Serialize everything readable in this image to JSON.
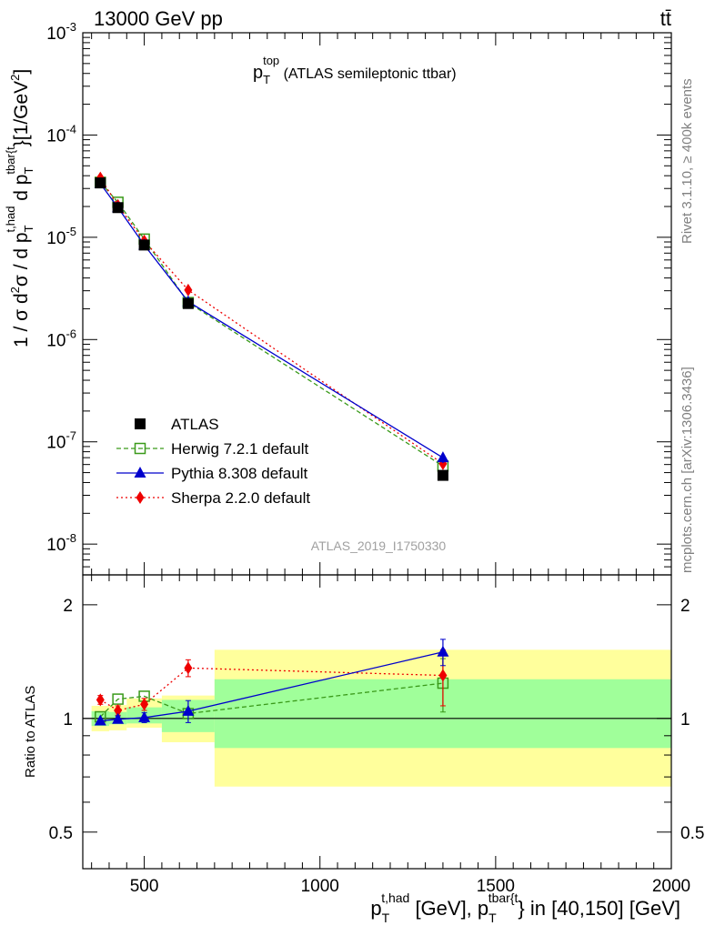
{
  "header": {
    "energy_label": "13000 GeV pp",
    "process_label": "tt̄"
  },
  "side_labels": {
    "rivet": "Rivet 3.1.10, ≥ 400k events",
    "mcplots": "mcplots.cern.ch [arXiv:1306.3436]"
  },
  "plot": {
    "title_main": "p",
    "title_sub": "T",
    "title_sup": "top",
    "title_rest": " (ATLAS semileptonic ttbar)",
    "watermark": "ATLAS_2019_I1750330",
    "ylabel_upper": "1 / σ d²σ / d p_T^{t,had} d p_T^{tbar{t}} [1/GeV²]",
    "ylabel_ratio": "Ratio to ATLAS",
    "xlabel": "p_T^{t,had} [GeV], p_T^{tbar{t}} in [40,150] [GeV]"
  },
  "colors": {
    "data": "#000000",
    "herwig": "#3a9a1a",
    "pythia": "#0000cc",
    "sherpa": "#ee0000",
    "band_inner": "#a0ff9a",
    "band_outer": "#ffff9c"
  },
  "chart_data": [
    {
      "type": "line",
      "scale": "log-y",
      "xlim": [
        325,
        2000
      ],
      "ylim": [
        5e-09,
        0.001
      ],
      "x_ticks": [
        500,
        1000,
        1500,
        2000
      ],
      "y_ticks": [
        {
          "value": 1e-08,
          "label": "10^-8"
        },
        {
          "value": 1e-07,
          "label": "10^-7"
        },
        {
          "value": 1e-06,
          "label": "10^-6"
        },
        {
          "value": 1e-05,
          "label": "10^-5"
        },
        {
          "value": 0.0001,
          "label": "10^-4"
        },
        {
          "value": 0.001,
          "label": "10^-3"
        }
      ],
      "legend_position": "bottom-left",
      "series": [
        {
          "key": "atlas",
          "name": "ATLAS",
          "marker": "square",
          "x": [
            375,
            425,
            500,
            625,
            1350
          ],
          "y": [
            3.4e-05,
            1.95e-05,
            8.4e-06,
            2.25e-06,
            4.7e-08
          ]
        },
        {
          "key": "herwig",
          "name": "Herwig 7.2.1 default",
          "marker": "open-square",
          "line": "dashed",
          "x": [
            375,
            425,
            500,
            625,
            1350
          ],
          "y": [
            3.45e-05,
            2.2e-05,
            9.6e-06,
            2.3e-06,
            5.8e-08
          ]
        },
        {
          "key": "pythia",
          "name": "Pythia 8.308 default",
          "marker": "triangle",
          "line": "solid",
          "x": [
            375,
            425,
            500,
            625,
            1350
          ],
          "y": [
            3.35e-05,
            1.95e-05,
            8.4e-06,
            2.35e-06,
            7e-08
          ],
          "yerr": [
            0,
            0,
            0,
            0,
            8e-09
          ]
        },
        {
          "key": "sherpa",
          "name": "Sherpa 2.2.0 default",
          "marker": "diamond",
          "line": "dotted",
          "x": [
            375,
            425,
            500,
            625,
            1350
          ],
          "y": [
            3.8e-05,
            2.05e-05,
            9.2e-06,
            3.05e-06,
            6.1e-08
          ]
        }
      ]
    },
    {
      "type": "line",
      "scale": "log-y",
      "xlim": [
        325,
        2000
      ],
      "ylim": [
        0.4,
        2.4
      ],
      "x_ticks": [
        500,
        1000,
        1500,
        2000
      ],
      "y_ticks": [
        {
          "value": 0.5,
          "label": "0.5"
        },
        {
          "value": 1,
          "label": "1"
        },
        {
          "value": 2,
          "label": "2"
        }
      ],
      "reference_line": 1,
      "bands": [
        {
          "x0": 350,
          "x1": 400,
          "inner": [
            0.955,
            1.045
          ],
          "outer": [
            0.925,
            1.08
          ]
        },
        {
          "x0": 400,
          "x1": 450,
          "inner": [
            0.965,
            1.04
          ],
          "outer": [
            0.93,
            1.085
          ]
        },
        {
          "x0": 450,
          "x1": 550,
          "inner": [
            0.97,
            1.07
          ],
          "outer": [
            0.945,
            1.13
          ]
        },
        {
          "x0": 550,
          "x1": 700,
          "inner": [
            0.92,
            1.12
          ],
          "outer": [
            0.865,
            1.15
          ]
        },
        {
          "x0": 700,
          "x1": 2000,
          "inner": [
            0.835,
            1.27
          ],
          "outer": [
            0.66,
            1.52
          ]
        }
      ],
      "series": [
        {
          "key": "herwig",
          "x": [
            375,
            425,
            500,
            625,
            1350
          ],
          "y": [
            1.01,
            1.125,
            1.145,
            1.03,
            1.24
          ],
          "yerr": [
            0,
            0,
            0,
            0,
            0.2
          ]
        },
        {
          "key": "pythia",
          "x": [
            375,
            425,
            500,
            625,
            1350
          ],
          "y": [
            0.985,
            0.995,
            1.005,
            1.045,
            1.5
          ],
          "yerr": [
            0,
            0.02,
            0.03,
            0.07,
            0.12
          ]
        },
        {
          "key": "sherpa",
          "x": [
            375,
            425,
            500,
            625,
            1350
          ],
          "y": [
            1.12,
            1.05,
            1.09,
            1.36,
            1.3
          ],
          "yerr": [
            0.03,
            0.03,
            0.04,
            0.07,
            0.22
          ]
        }
      ]
    }
  ]
}
